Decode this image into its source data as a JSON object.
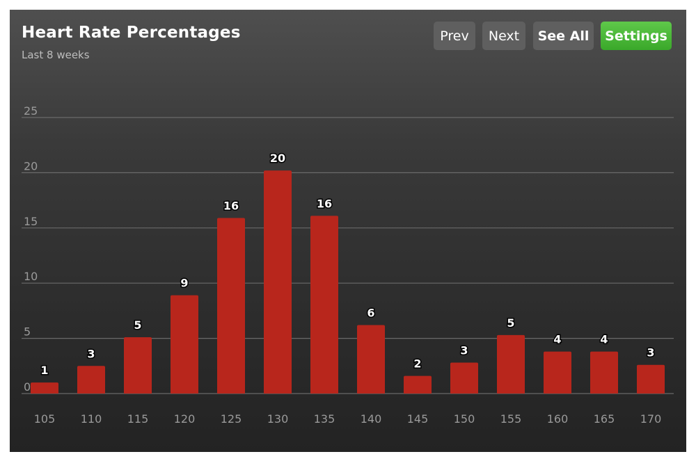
{
  "header": {
    "title": "Heart Rate Percentages",
    "subtitle": "Last 8 weeks"
  },
  "buttons": {
    "prev": "Prev",
    "next": "Next",
    "see_all": "See All",
    "settings": "Settings"
  },
  "colors": {
    "bar": "#b8261c",
    "settings_button": "#4bb83a",
    "gridline": "#6a6a6a",
    "tick_text": "#9a9a9a"
  },
  "chart_data": {
    "type": "bar",
    "categories": [
      "105",
      "110",
      "115",
      "120",
      "125",
      "130",
      "135",
      "140",
      "145",
      "150",
      "155",
      "160",
      "165",
      "170"
    ],
    "values": [
      1,
      3,
      5,
      9,
      16,
      20,
      16,
      6,
      2,
      3,
      5,
      4,
      4,
      3
    ],
    "data_labels": [
      "1",
      "3",
      "5",
      "9",
      "16",
      "20",
      "16",
      "6",
      "2",
      "3",
      "5",
      "4",
      "4",
      "3"
    ],
    "bar_values": [
      1.0,
      2.5,
      5.1,
      8.9,
      15.9,
      20.2,
      16.1,
      6.2,
      1.6,
      2.8,
      5.3,
      3.8,
      3.8,
      2.6
    ],
    "ylim": [
      0,
      25
    ],
    "yticks": [
      "0",
      "5",
      "10",
      "15",
      "20",
      "25"
    ],
    "grid": true,
    "legend": "none"
  }
}
